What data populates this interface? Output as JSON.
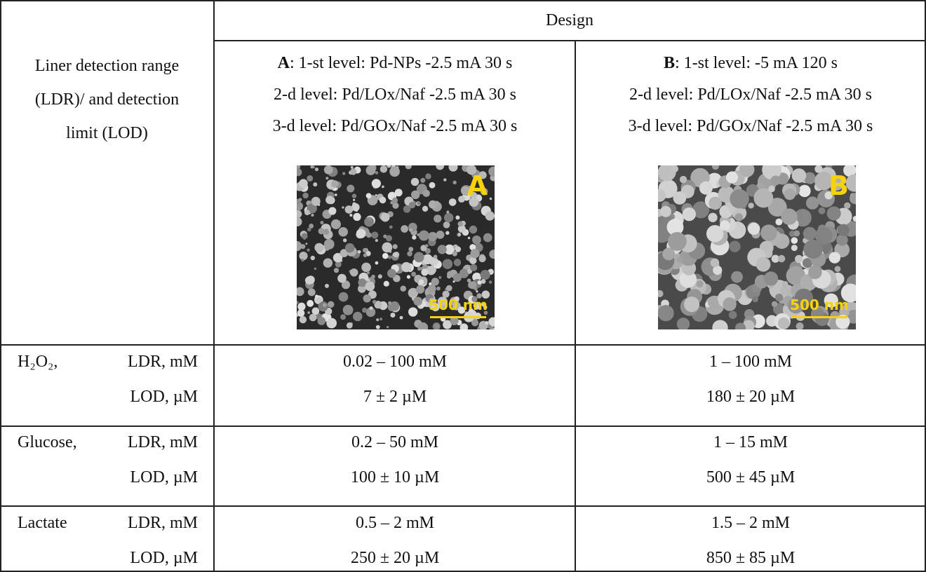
{
  "header": {
    "corner": "Liner detection range (LDR)/ and detection limit (LOD)",
    "design": "Design"
  },
  "designs": [
    {
      "letter": "A",
      "levels": [
        ": 1-st level: Pd-NPs -2.5 mA 30 s",
        "2-d level: Pd/LOx/Naf -2.5 mA 30 s",
        "3-d level: Pd/GOx/Naf -2.5 mA 30 s"
      ],
      "image": {
        "letter": "A",
        "scale": "500 nm"
      }
    },
    {
      "letter": "B",
      "levels": [
        ": 1-st level: -5 mA 120 s",
        "2-d level: Pd/LOx/Naf -2.5 mA 30 s",
        "3-d level: Pd/GOx/Naf -2.5 mA 30 s"
      ],
      "image": {
        "letter": "B",
        "scale": "500 nm"
      }
    }
  ],
  "rows": [
    {
      "analyte": "H₂O₂,",
      "ldr_label": "LDR, mM",
      "lod_label": "LOD, µM",
      "values": [
        [
          "0.02 – 100 mM",
          "7 ± 2 µM"
        ],
        [
          "1 – 100 mM",
          "180 ± 20 µM"
        ]
      ]
    },
    {
      "analyte": "Glucose,",
      "ldr_label": "LDR, mM",
      "lod_label": "LOD, µM",
      "values": [
        [
          "0.2 – 50 mM",
          "100 ± 10 µM"
        ],
        [
          "1 – 15 mM",
          "500 ± 45 µM"
        ]
      ]
    },
    {
      "analyte": "Lactate",
      "ldr_label": "LDR, mM",
      "lod_label": "LOD, µM",
      "values": [
        [
          "0.5 – 2 mM",
          "250 ± 20 µM"
        ],
        [
          "1.5 – 2 mM",
          "850 ± 85 µM"
        ]
      ]
    }
  ]
}
